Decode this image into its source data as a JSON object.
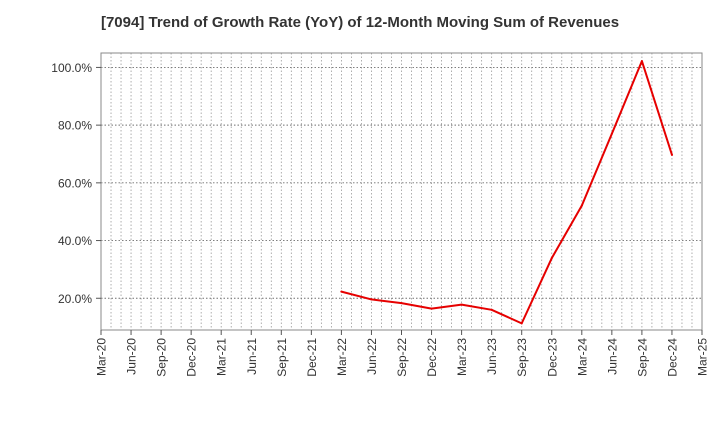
{
  "chart_data": {
    "type": "line",
    "title": "[7094]  Trend of Growth Rate (YoY) of 12-Month Moving Sum of Revenues",
    "xlabel": "",
    "ylabel": "",
    "categories": [
      "Mar-20",
      "Jun-20",
      "Sep-20",
      "Dec-20",
      "Mar-21",
      "Jun-21",
      "Sep-21",
      "Dec-21",
      "Mar-22",
      "Jun-22",
      "Sep-22",
      "Dec-22",
      "Mar-23",
      "Jun-23",
      "Sep-23",
      "Dec-23",
      "Mar-24",
      "Jun-24",
      "Sep-24",
      "Dec-24",
      "Mar-25"
    ],
    "series": [
      {
        "name": "",
        "color": "#e60000",
        "values": [
          null,
          null,
          null,
          null,
          null,
          null,
          null,
          null,
          22.3,
          19.6,
          18.3,
          16.4,
          17.8,
          16.0,
          11.3,
          33.9,
          52.1,
          77.0,
          102.2,
          69.7,
          null
        ]
      }
    ],
    "ylim": [
      9,
      105
    ],
    "yticks": [
      20,
      40,
      60,
      80,
      100
    ],
    "ytick_labels": [
      "20.0%",
      "40.0%",
      "60.0%",
      "80.0%",
      "100.0%"
    ],
    "grid": true,
    "legend": "none"
  }
}
